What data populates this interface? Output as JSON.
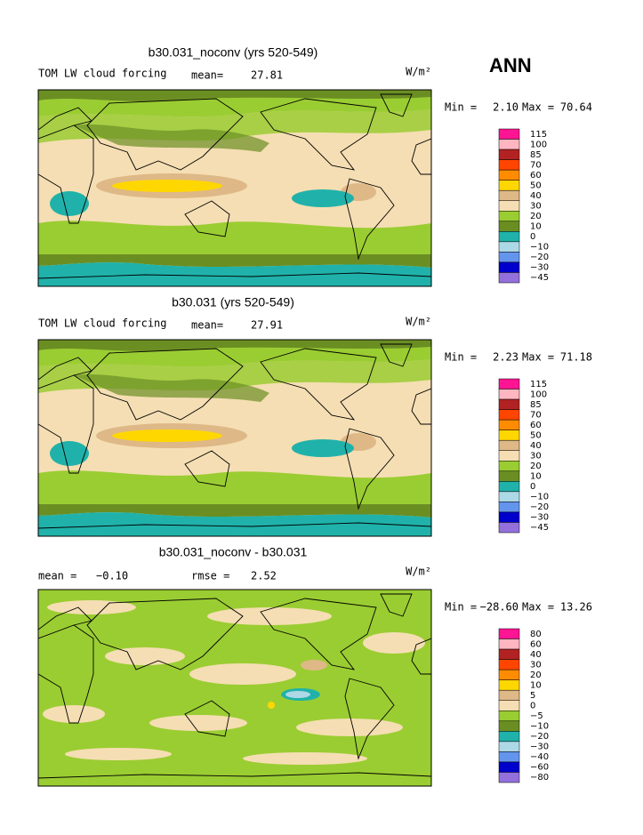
{
  "header": {
    "season": "ANN"
  },
  "panels": [
    {
      "title": "b30.031_noconv (yrs 520-549)",
      "left_label": "TOM LW cloud forcing",
      "mean_label": "mean=",
      "mean": "27.81",
      "units": "W/m²",
      "min_label": "Min =",
      "min": "2.10",
      "max_label": "Max =",
      "max": "70.64",
      "colorbar": {
        "labels": [
          "115",
          "100",
          "85",
          "70",
          "60",
          "50",
          "40",
          "30",
          "20",
          "10",
          "0",
          "−10",
          "−20",
          "−30",
          "−45"
        ],
        "colors": [
          "#ff1493",
          "#ffb6c1",
          "#b22222",
          "#ff4500",
          "#ff8c00",
          "#ffd700",
          "#deb887",
          "#f5deb3",
          "#9acd32",
          "#6b8e23",
          "#20b2aa",
          "#add8e6",
          "#6495ed",
          "#0000cd",
          "#9370db"
        ]
      }
    },
    {
      "title": "b30.031 (yrs 520-549)",
      "left_label": "TOM LW cloud forcing",
      "mean_label": "mean=",
      "mean": "27.91",
      "units": "W/m²",
      "min_label": "Min =",
      "min": "2.23",
      "max_label": "Max =",
      "max": "71.18",
      "colorbar": {
        "labels": [
          "115",
          "100",
          "85",
          "70",
          "60",
          "50",
          "40",
          "30",
          "20",
          "10",
          "0",
          "−10",
          "−20",
          "−30",
          "−45"
        ],
        "colors": [
          "#ff1493",
          "#ffb6c1",
          "#b22222",
          "#ff4500",
          "#ff8c00",
          "#ffd700",
          "#deb887",
          "#f5deb3",
          "#9acd32",
          "#6b8e23",
          "#20b2aa",
          "#add8e6",
          "#6495ed",
          "#0000cd",
          "#9370db"
        ]
      }
    },
    {
      "title": "b30.031_noconv - b30.031",
      "mean_label": "mean =",
      "mean": "−0.10",
      "rmse_label": "rmse =",
      "rmse": "2.52",
      "units": "W/m²",
      "min_label": "Min =",
      "min": "−28.60",
      "max_label": "Max =",
      "max": "13.26",
      "colorbar": {
        "labels": [
          "80",
          "60",
          "40",
          "30",
          "20",
          "10",
          "5",
          "0",
          "−5",
          "−10",
          "−20",
          "−30",
          "−40",
          "−60",
          "−80"
        ],
        "colors": [
          "#ff1493",
          "#ffb6c1",
          "#b22222",
          "#ff4500",
          "#ff8c00",
          "#ffd700",
          "#deb887",
          "#f5deb3",
          "#9acd32",
          "#6b8e23",
          "#20b2aa",
          "#add8e6",
          "#6495ed",
          "#0000cd",
          "#9370db"
        ]
      }
    }
  ]
}
